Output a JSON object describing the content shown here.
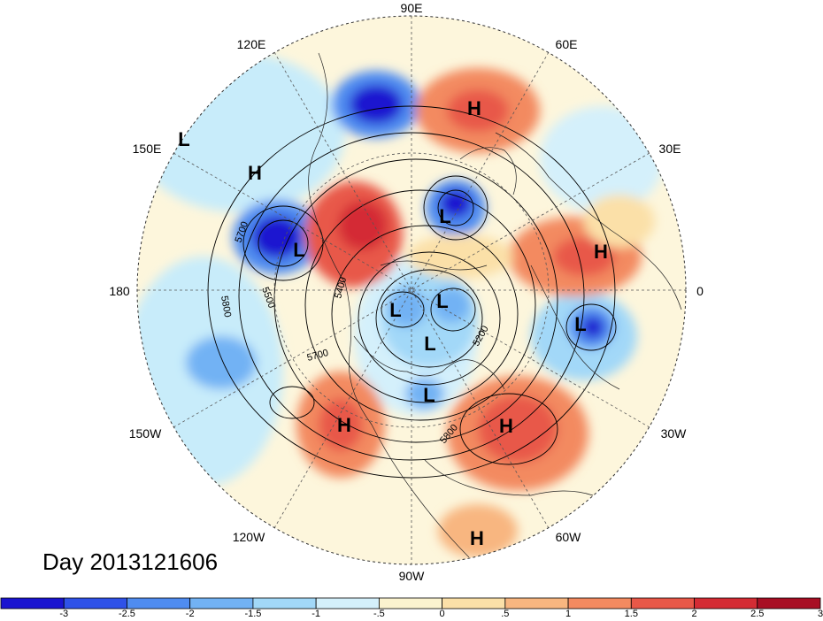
{
  "day_label": "Day 2013121606",
  "longitude_labels": {
    "lon_90e": "90E",
    "lon_60e": "60E",
    "lon_30e": "30E",
    "lon_0": "0",
    "lon_30w": "30W",
    "lon_60w": "60W",
    "lon_90w": "90W",
    "lon_120w": "120W",
    "lon_150w": "150W",
    "lon_180": "180",
    "lon_150e": "150E",
    "lon_120e": "120E"
  },
  "contour_labels": [
    "5700",
    "5800",
    "5500",
    "5400",
    "5200",
    "5700",
    "5800"
  ],
  "pressure_centers": [
    "L",
    "H",
    "L",
    "H",
    "L",
    "H",
    "L",
    "L",
    "L",
    "L",
    "L",
    "H",
    "H",
    "H"
  ],
  "colorbar": {
    "ticks": [
      "-3",
      "-2.5",
      "-2",
      "-1.5",
      "-1",
      "-.5",
      "0",
      ".5",
      "1",
      "1.5",
      "2",
      "2.5",
      "3"
    ],
    "colors": [
      "#1a14d0",
      "#2f52e8",
      "#4f8cf0",
      "#72b2f4",
      "#a2d8f8",
      "#d4f0fb",
      "#fbf3cf",
      "#fbe0a8",
      "#f8b680",
      "#f38a60",
      "#e85848",
      "#d42c34",
      "#a80f24"
    ]
  }
}
